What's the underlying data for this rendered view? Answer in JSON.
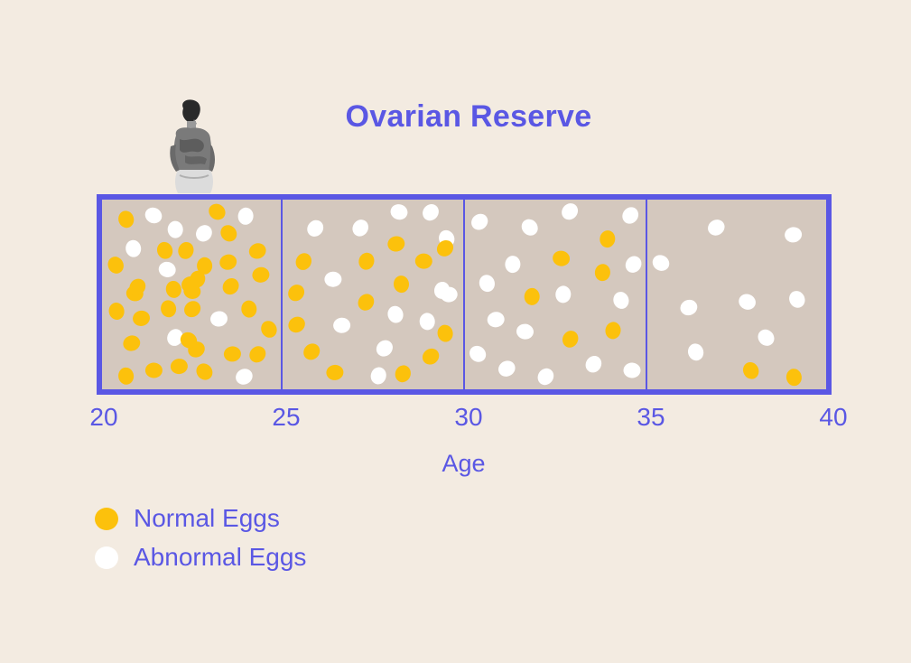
{
  "chart_data": {
    "type": "scatter",
    "title": "Ovarian Reserve",
    "xlabel": "Age",
    "x_ticks": [
      "20",
      "25",
      "30",
      "35",
      "40"
    ],
    "xlim": [
      20,
      40
    ],
    "bins": [
      {
        "range": [
          20,
          25
        ],
        "normal_eggs": 32,
        "abnormal_eggs": 9
      },
      {
        "range": [
          25,
          30
        ],
        "normal_eggs": 14,
        "abnormal_eggs": 13
      },
      {
        "range": [
          30,
          35
        ],
        "normal_eggs": 6,
        "abnormal_eggs": 16
      },
      {
        "range": [
          35,
          40
        ],
        "normal_eggs": 2,
        "abnormal_eggs": 8
      }
    ],
    "legend": [
      {
        "name": "Normal Eggs",
        "color": "#fcc10c"
      },
      {
        "name": "Abnormal Eggs",
        "color": "#ffffff"
      }
    ],
    "legend_position": "bottom-left"
  },
  "colors": {
    "background": "#f3ebe1",
    "accent": "#5a57e4",
    "box_fill": "#d4c8be",
    "normal": "#fcc10c",
    "abnormal": "#ffffff"
  },
  "decoration": "woman-sitting-icon"
}
